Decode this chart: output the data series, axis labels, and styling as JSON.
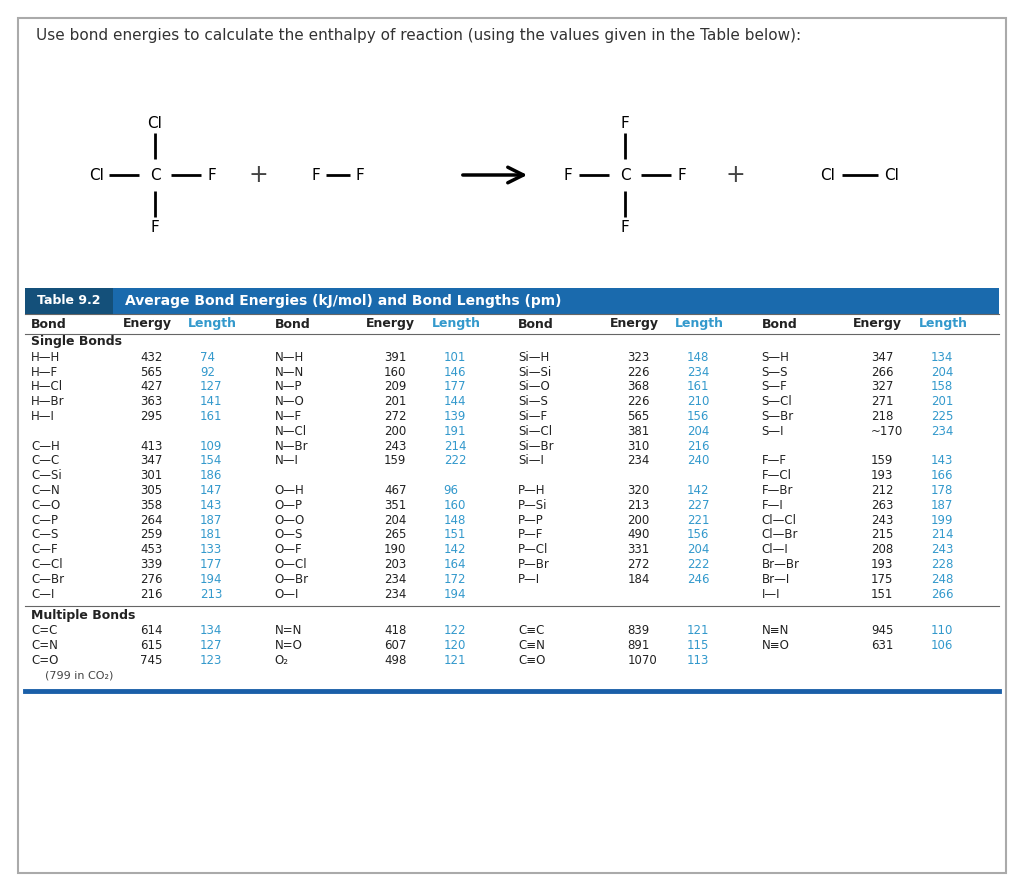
{
  "title": "Use bond energies to calculate the enthalpy of reaction (using the values given in the Table below):",
  "table_header": "Average Bond Energies (kJ/mol) and Bond Lengths (pm)",
  "table_label": "Table 9.2",
  "header_bg": "#1a6aad",
  "header_text_color": "#ffffff",
  "length_color": "#3399cc",
  "section_single": "Single Bonds",
  "section_multiple": "Multiple Bonds",
  "col1": [
    [
      "H—H",
      "432",
      "74"
    ],
    [
      "H—F",
      "565",
      "92"
    ],
    [
      "H—Cl",
      "427",
      "127"
    ],
    [
      "H—Br",
      "363",
      "141"
    ],
    [
      "H—I",
      "295",
      "161"
    ],
    [
      "",
      "",
      ""
    ],
    [
      "C—H",
      "413",
      "109"
    ],
    [
      "C—C",
      "347",
      "154"
    ],
    [
      "C—Si",
      "301",
      "186"
    ],
    [
      "C—N",
      "305",
      "147"
    ],
    [
      "C—O",
      "358",
      "143"
    ],
    [
      "C—P",
      "264",
      "187"
    ],
    [
      "C—S",
      "259",
      "181"
    ],
    [
      "C—F",
      "453",
      "133"
    ],
    [
      "C—Cl",
      "339",
      "177"
    ],
    [
      "C—Br",
      "276",
      "194"
    ],
    [
      "C—I",
      "216",
      "213"
    ]
  ],
  "col2": [
    [
      "N—H",
      "391",
      "101"
    ],
    [
      "N—N",
      "160",
      "146"
    ],
    [
      "N—P",
      "209",
      "177"
    ],
    [
      "N—O",
      "201",
      "144"
    ],
    [
      "N—F",
      "272",
      "139"
    ],
    [
      "N—Cl",
      "200",
      "191"
    ],
    [
      "N—Br",
      "243",
      "214"
    ],
    [
      "N—I",
      "159",
      "222"
    ],
    [
      "",
      "",
      ""
    ],
    [
      "O—H",
      "467",
      "96"
    ],
    [
      "O—P",
      "351",
      "160"
    ],
    [
      "O—O",
      "204",
      "148"
    ],
    [
      "O—S",
      "265",
      "151"
    ],
    [
      "O—F",
      "190",
      "142"
    ],
    [
      "O—Cl",
      "203",
      "164"
    ],
    [
      "O—Br",
      "234",
      "172"
    ],
    [
      "O—I",
      "234",
      "194"
    ]
  ],
  "col3": [
    [
      "Si—H",
      "323",
      "148"
    ],
    [
      "Si—Si",
      "226",
      "234"
    ],
    [
      "Si—O",
      "368",
      "161"
    ],
    [
      "Si—S",
      "226",
      "210"
    ],
    [
      "Si—F",
      "565",
      "156"
    ],
    [
      "Si—Cl",
      "381",
      "204"
    ],
    [
      "Si—Br",
      "310",
      "216"
    ],
    [
      "Si—I",
      "234",
      "240"
    ],
    [
      "",
      "",
      ""
    ],
    [
      "P—H",
      "320",
      "142"
    ],
    [
      "P—Si",
      "213",
      "227"
    ],
    [
      "P—P",
      "200",
      "221"
    ],
    [
      "P—F",
      "490",
      "156"
    ],
    [
      "P—Cl",
      "331",
      "204"
    ],
    [
      "P—Br",
      "272",
      "222"
    ],
    [
      "P—I",
      "184",
      "246"
    ],
    [
      "",
      "",
      ""
    ]
  ],
  "col4": [
    [
      "S—H",
      "347",
      "134"
    ],
    [
      "S—S",
      "266",
      "204"
    ],
    [
      "S—F",
      "327",
      "158"
    ],
    [
      "S—Cl",
      "271",
      "201"
    ],
    [
      "S—Br",
      "218",
      "225"
    ],
    [
      "S—I",
      "~170",
      "234"
    ],
    [
      "",
      "",
      ""
    ],
    [
      "F—F",
      "159",
      "143"
    ],
    [
      "F—Cl",
      "193",
      "166"
    ],
    [
      "F—Br",
      "212",
      "178"
    ],
    [
      "F—I",
      "263",
      "187"
    ],
    [
      "Cl—Cl",
      "243",
      "199"
    ],
    [
      "Cl—Br",
      "215",
      "214"
    ],
    [
      "Cl—I",
      "208",
      "243"
    ],
    [
      "Br—Br",
      "193",
      "228"
    ],
    [
      "Br—I",
      "175",
      "248"
    ],
    [
      "I—I",
      "151",
      "266"
    ]
  ],
  "multi_col1": [
    [
      "C=C",
      "614",
      "134"
    ],
    [
      "C=N",
      "615",
      "127"
    ],
    [
      "C=O",
      "745",
      "123"
    ]
  ],
  "multi_col1_note": "(799 in CO₂)",
  "multi_col2": [
    [
      "N=N",
      "418",
      "122"
    ],
    [
      "N=O",
      "607",
      "120"
    ],
    [
      "O₂",
      "498",
      "121"
    ]
  ],
  "multi_col3": [
    [
      "C≡C",
      "839",
      "121"
    ],
    [
      "C≡N",
      "891",
      "115"
    ],
    [
      "C≡O",
      "1070",
      "113"
    ]
  ],
  "multi_col4": [
    [
      "N≡N",
      "945",
      "110"
    ],
    [
      "N≡O",
      "631",
      "106"
    ],
    [
      "",
      "",
      ""
    ]
  ],
  "dark_blue": "#1a5fa8"
}
